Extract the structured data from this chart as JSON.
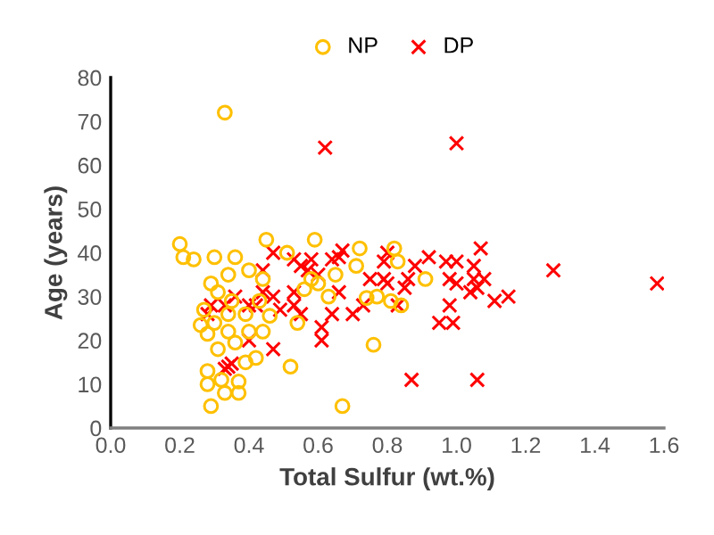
{
  "chart_data": {
    "type": "scatter",
    "xlabel": "Total Sulfur (wt.%)",
    "ylabel": "Age (years)",
    "xlim": [
      0,
      1.6
    ],
    "ylim": [
      0,
      80
    ],
    "xticks": [
      {
        "value": 0,
        "label": "0.0"
      },
      {
        "value": 0.2,
        "label": "0.2"
      },
      {
        "value": 0.4,
        "label": "0.4"
      },
      {
        "value": 0.6,
        "label": "0.6"
      },
      {
        "value": 0.8,
        "label": "0.8"
      },
      {
        "value": 1.0,
        "label": "1.0"
      },
      {
        "value": 1.2,
        "label": "1.2"
      },
      {
        "value": 1.4,
        "label": "1.4"
      },
      {
        "value": 1.6,
        "label": "1.6"
      }
    ],
    "yticks": [
      0,
      10,
      20,
      30,
      40,
      50,
      60,
      70,
      80
    ],
    "grid": false,
    "legend": "top",
    "series": [
      {
        "name": "NP",
        "color": "#ffc000",
        "marker": "circle",
        "x": [
          0.33,
          0.2,
          0.21,
          0.24,
          0.3,
          0.36,
          0.34,
          0.29,
          0.4,
          0.45,
          0.44,
          0.51,
          0.59,
          0.27,
          0.26,
          0.28,
          0.31,
          0.34,
          0.36,
          0.4,
          0.44,
          0.42,
          0.39,
          0.28,
          0.28,
          0.32,
          0.37,
          0.33,
          0.37,
          0.29,
          0.52,
          0.54,
          0.34,
          0.35,
          0.31,
          0.3,
          0.39,
          0.46,
          0.43,
          0.56,
          0.58,
          0.72,
          0.82,
          0.83,
          0.91,
          0.77,
          0.81,
          0.84,
          0.63,
          0.74,
          0.6,
          0.71,
          0.76,
          0.67,
          0.65
        ],
        "values": [
          72,
          42,
          39,
          38.5,
          39,
          39,
          35,
          33,
          36,
          43,
          34,
          40,
          43,
          27,
          23.5,
          21.5,
          18,
          22,
          19.5,
          22,
          22,
          16,
          15,
          13,
          10,
          11,
          10.6,
          8,
          8,
          5,
          14,
          24,
          26,
          29,
          31,
          24,
          26,
          25.6,
          29,
          31.7,
          34,
          41,
          41,
          38,
          34,
          30,
          29,
          28,
          30,
          29.7,
          33,
          37,
          19,
          5,
          35
        ]
      },
      {
        "name": "DP",
        "color": "#ff0000",
        "marker": "cross",
        "x": [
          0.62,
          1.0,
          1.58,
          1.28,
          1.07,
          1.05,
          1.0,
          0.97,
          0.98,
          1.0,
          1.05,
          1.08,
          1.04,
          1.06,
          1.11,
          1.15,
          0.98,
          0.95,
          0.99,
          0.87,
          1.06,
          0.92,
          0.88,
          0.86,
          0.85,
          0.83,
          0.79,
          0.79,
          0.8,
          0.8,
          0.73,
          0.7,
          0.64,
          0.61,
          0.61,
          0.66,
          0.75,
          0.66,
          0.67,
          0.64,
          0.6,
          0.58,
          0.44,
          0.47,
          0.53,
          0.55,
          0.57,
          0.36,
          0.4,
          0.42,
          0.47,
          0.49,
          0.53,
          0.55,
          0.29,
          0.33,
          0.4,
          0.47,
          0.35,
          0.34,
          0.53,
          0.44,
          0.28,
          0.33
        ],
        "values": [
          64,
          65,
          33,
          36,
          41,
          37,
          38,
          38,
          34,
          33,
          34,
          34,
          31,
          32,
          29,
          30,
          28,
          24,
          24,
          11,
          11,
          39,
          37,
          34,
          32,
          28,
          38,
          34,
          33,
          40,
          28,
          26,
          26,
          23,
          20,
          31,
          34,
          39,
          40.5,
          38.5,
          35,
          38.5,
          36,
          40,
          38.5,
          37,
          36,
          30,
          28,
          28,
          30,
          27,
          28,
          26,
          28,
          28,
          20,
          18,
          14.7,
          14,
          31,
          31,
          26,
          13.5
        ]
      }
    ]
  }
}
